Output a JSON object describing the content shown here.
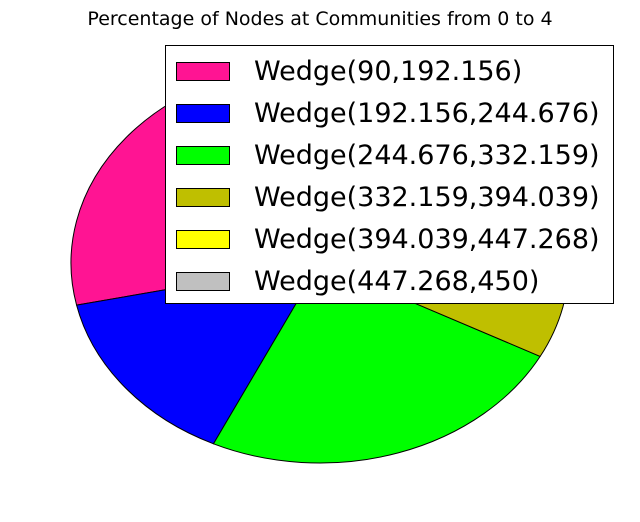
{
  "chart_data": {
    "type": "pie",
    "title": "Percentage of Nodes at Communities from 0 to 4",
    "unit": "degrees",
    "slices": [
      {
        "label": "Wedge(90,192.156)",
        "start": 90,
        "end": 192.156,
        "color": "#ff1493"
      },
      {
        "label": "Wedge(192.156,244.676)",
        "start": 192.156,
        "end": 244.676,
        "color": "#0000ff"
      },
      {
        "label": "Wedge(244.676,332.159)",
        "start": 244.676,
        "end": 332.159,
        "color": "#00ff00"
      },
      {
        "label": "Wedge(332.159,394.039)",
        "start": 332.159,
        "end": 394.039,
        "color": "#bfbf00"
      },
      {
        "label": "Wedge(394.039,447.268)",
        "start": 394.039,
        "end": 447.268,
        "color": "#ffff00"
      },
      {
        "label": "Wedge(447.268,450)",
        "start": 447.268,
        "end": 450,
        "color": "#c0c0c0"
      }
    ],
    "legend_position": "top-right"
  }
}
